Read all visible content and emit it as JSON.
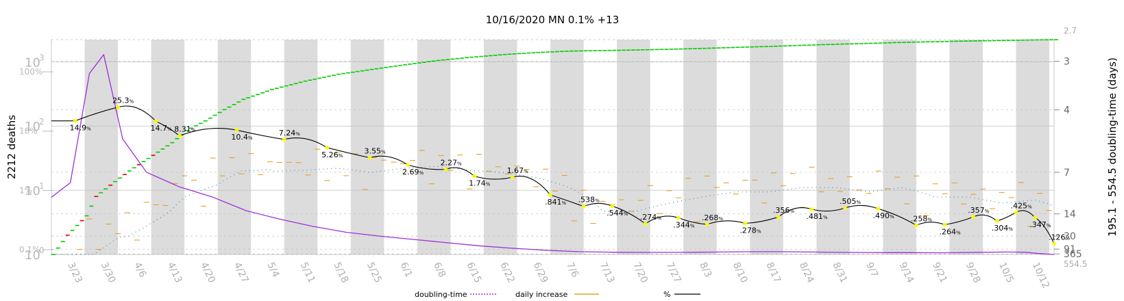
{
  "title": "10/16/2020 MN 0.1% +13",
  "y_label_left": "2212 deaths",
  "y_label_right": "195.1 - 554.5 doubling-time (days)",
  "left_ticks": [
    {
      "label": "10",
      "exp": "3",
      "v": 1000
    },
    {
      "label": "10",
      "exp": "2",
      "v": 100
    },
    {
      "label": "10",
      "exp": "1",
      "v": 10
    },
    {
      "label": "10",
      "exp": "0",
      "v": 1
    }
  ],
  "pct_ticks": [
    {
      "label": "100%",
      "v": 1.0
    },
    {
      "label": "10%",
      "v": 0.1
    },
    {
      "label": "1%",
      "v": 0.01
    },
    {
      "label": "0.1%",
      "v": 0.001
    }
  ],
  "right_ticks": [
    "2.7",
    "3",
    "4",
    "7",
    "14",
    "30",
    "91",
    "365",
    "554.5"
  ],
  "legend": {
    "doubling": "doubling-time",
    "daily": "daily increase",
    "pct": "%"
  },
  "colors": {
    "cumulative_up": "#00cc00",
    "cumulative_down": "#dd0000",
    "doubling": "#9b30d9",
    "daily": "#e6a020",
    "pct": "#000000",
    "dotted": "#4a8fa8",
    "band": "#dcdcdc",
    "highlight": "#ffff00"
  },
  "chart_data": {
    "type": "line",
    "x_start": "2020-03-19",
    "x_end": "2020-10-16",
    "x_tick_labels": [
      "3/23",
      "3/30",
      "4/6",
      "4/13",
      "4/20",
      "4/27",
      "5/4",
      "5/11",
      "5/18",
      "5/25",
      "6/1",
      "6/8",
      "6/15",
      "6/22",
      "6/29",
      "7/6",
      "7/13",
      "7/20",
      "7/27",
      "8/3",
      "8/10",
      "8/17",
      "8/24",
      "8/31",
      "9/7",
      "9/14",
      "9/21",
      "9/28",
      "10/5",
      "10/12"
    ],
    "y_left_scale": "log",
    "y_left_range": [
      1,
      2212
    ],
    "y_right_scale": "reciprocal",
    "y_right_range": [
      2.7,
      554.5
    ],
    "cumulative_deaths": [
      [
        "2020-03-19",
        1
      ],
      [
        "2020-03-22",
        2
      ],
      [
        "2020-03-26",
        4
      ],
      [
        "2020-03-28",
        8
      ],
      [
        "2020-03-31",
        12
      ],
      [
        "2020-04-04",
        20
      ],
      [
        "2020-04-09",
        35
      ],
      [
        "2020-04-13",
        55
      ],
      [
        "2020-04-16",
        85
      ],
      [
        "2020-04-20",
        120
      ],
      [
        "2020-04-24",
        180
      ],
      [
        "2020-04-28",
        260
      ],
      [
        "2020-05-04",
        370
      ],
      [
        "2020-05-11",
        500
      ],
      [
        "2020-05-18",
        640
      ],
      [
        "2020-05-25",
        760
      ],
      [
        "2020-06-01",
        900
      ],
      [
        "2020-06-08",
        1050
      ],
      [
        "2020-06-15",
        1180
      ],
      [
        "2020-06-22",
        1300
      ],
      [
        "2020-06-29",
        1400
      ],
      [
        "2020-07-06",
        1470
      ],
      [
        "2020-07-13",
        1500
      ],
      [
        "2020-07-20",
        1530
      ],
      [
        "2020-07-27",
        1570
      ],
      [
        "2020-08-03",
        1620
      ],
      [
        "2020-08-10",
        1680
      ],
      [
        "2020-08-17",
        1740
      ],
      [
        "2020-08-24",
        1810
      ],
      [
        "2020-08-31",
        1880
      ],
      [
        "2020-09-07",
        1940
      ],
      [
        "2020-09-14",
        2010
      ],
      [
        "2020-09-21",
        2060
      ],
      [
        "2020-09-28",
        2110
      ],
      [
        "2020-10-05",
        2150
      ],
      [
        "2020-10-12",
        2195
      ],
      [
        "2020-10-16",
        2212
      ]
    ],
    "doubling_time_days": [
      [
        "2020-03-19",
        10
      ],
      [
        "2020-03-23",
        8
      ],
      [
        "2020-03-27",
        3.2
      ],
      [
        "2020-03-30",
        2.9
      ],
      [
        "2020-04-03",
        5
      ],
      [
        "2020-04-08",
        7
      ],
      [
        "2020-04-15",
        8.5
      ],
      [
        "2020-04-22",
        10
      ],
      [
        "2020-04-29",
        13
      ],
      [
        "2020-05-06",
        16
      ],
      [
        "2020-05-13",
        20
      ],
      [
        "2020-05-20",
        25
      ],
      [
        "2020-05-27",
        30
      ],
      [
        "2020-06-03",
        36
      ],
      [
        "2020-06-10",
        45
      ],
      [
        "2020-06-17",
        60
      ],
      [
        "2020-06-24",
        80
      ],
      [
        "2020-07-01",
        110
      ],
      [
        "2020-07-08",
        150
      ],
      [
        "2020-07-15",
        175
      ],
      [
        "2020-07-22",
        185
      ],
      [
        "2020-07-29",
        185
      ],
      [
        "2020-08-05",
        170
      ],
      [
        "2020-08-12",
        155
      ],
      [
        "2020-08-19",
        150
      ],
      [
        "2020-08-26",
        165
      ],
      [
        "2020-09-02",
        185
      ],
      [
        "2020-09-09",
        195
      ],
      [
        "2020-09-16",
        200
      ],
      [
        "2020-09-23",
        210
      ],
      [
        "2020-09-30",
        180
      ],
      [
        "2020-10-06",
        165
      ],
      [
        "2020-10-10",
        175
      ],
      [
        "2020-10-13",
        300
      ],
      [
        "2020-10-16",
        554.5
      ]
    ],
    "daily_pct_labels": [
      {
        "date": "2020-03-24",
        "text": "14.9",
        "pct": 14.9
      },
      {
        "date": "2020-04-02",
        "text": "25.3",
        "pct": 25.3
      },
      {
        "date": "2020-04-10",
        "text": "14.7",
        "pct": 14.7
      },
      {
        "date": "2020-04-15",
        "text": "8.31",
        "pct": 8.31
      },
      {
        "date": "2020-04-27",
        "text": "10.4",
        "pct": 10.4
      },
      {
        "date": "2020-05-07",
        "text": "7.24",
        "pct": 7.24
      },
      {
        "date": "2020-05-16",
        "text": "5.26",
        "pct": 5.26
      },
      {
        "date": "2020-05-25",
        "text": "3.55",
        "pct": 3.55
      },
      {
        "date": "2020-06-02",
        "text": "2.69",
        "pct": 2.69
      },
      {
        "date": "2020-06-10",
        "text": "2.27",
        "pct": 2.27
      },
      {
        "date": "2020-06-16",
        "text": "1.74",
        "pct": 1.74
      },
      {
        "date": "2020-06-24",
        "text": "1.67",
        "pct": 1.67
      },
      {
        "date": "2020-07-02",
        "text": ".841",
        "pct": 0.841
      },
      {
        "date": "2020-07-09",
        "text": ".538",
        "pct": 0.538
      },
      {
        "date": "2020-07-15",
        "text": ".544",
        "pct": 0.544
      },
      {
        "date": "2020-07-22",
        "text": ".274",
        "pct": 0.274
      },
      {
        "date": "2020-07-29",
        "text": ".344",
        "pct": 0.344
      },
      {
        "date": "2020-08-04",
        "text": ".268",
        "pct": 0.268
      },
      {
        "date": "2020-08-12",
        "text": ".278",
        "pct": 0.278
      },
      {
        "date": "2020-08-19",
        "text": ".356",
        "pct": 0.356
      },
      {
        "date": "2020-08-26",
        "text": ".481",
        "pct": 0.481
      },
      {
        "date": "2020-09-02",
        "text": ".505",
        "pct": 0.505
      },
      {
        "date": "2020-09-09",
        "text": ".490",
        "pct": 0.49
      },
      {
        "date": "2020-09-17",
        "text": ".258",
        "pct": 0.258
      },
      {
        "date": "2020-09-23",
        "text": ".264",
        "pct": 0.264
      },
      {
        "date": "2020-09-29",
        "text": ".357",
        "pct": 0.357
      },
      {
        "date": "2020-10-04",
        "text": ".304",
        "pct": 0.304
      },
      {
        "date": "2020-10-08",
        "text": ".425",
        "pct": 0.425
      },
      {
        "date": "2020-10-12",
        "text": ".347",
        "pct": 0.347
      },
      {
        "date": "2020-10-16",
        "text": ".126",
        "pct": 0.126
      }
    ]
  }
}
